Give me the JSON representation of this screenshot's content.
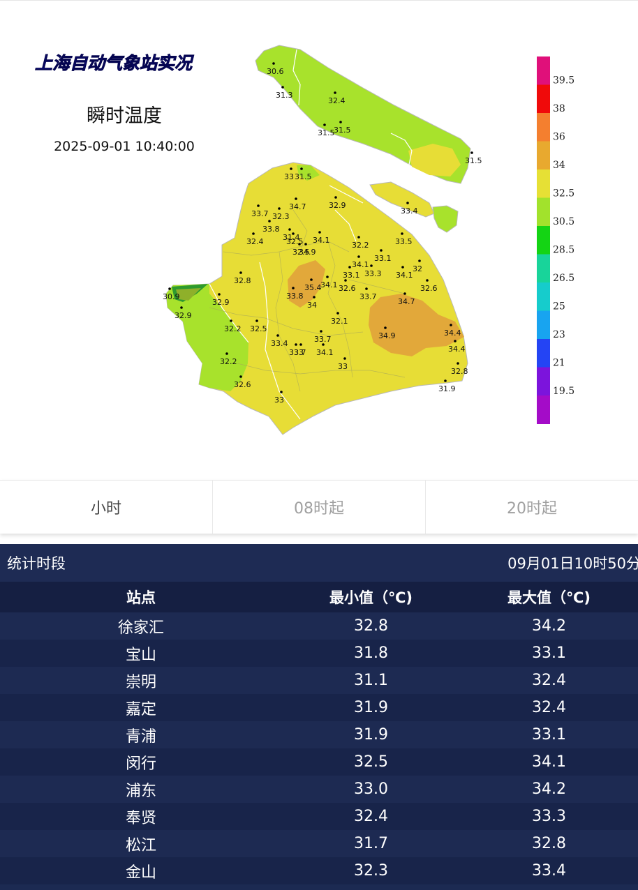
{
  "map": {
    "brand": "上海自动气象站实况",
    "title": "瞬时温度",
    "datetime": "2025-09-01 10:40:00",
    "colors": {
      "light_green": "#a8e22c",
      "yellow": "#e7dd36",
      "orange": "#e2a83a",
      "brand_text": "#1a1ac8"
    },
    "legend": [
      {
        "label": "39.5",
        "color": "#e0107a"
      },
      {
        "label": "38",
        "color": "#f00a0a"
      },
      {
        "label": "36",
        "color": "#f47f2f"
      },
      {
        "label": "34",
        "color": "#e8a92f"
      },
      {
        "label": "32.5",
        "color": "#e6e035"
      },
      {
        "label": "30.5",
        "color": "#a2e22c"
      },
      {
        "label": "28.5",
        "color": "#14d414"
      },
      {
        "label": "26.5",
        "color": "#18d49a"
      },
      {
        "label": "25",
        "color": "#16cccc"
      },
      {
        "label": "23",
        "color": "#18a4f0"
      },
      {
        "label": "21",
        "color": "#2444f4"
      },
      {
        "label": "19.5",
        "color": "#7c14dc"
      },
      {
        "label": "",
        "color": "#a40cc8"
      }
    ],
    "station_values": [
      "30.6",
      "31.3",
      "32.4",
      "31.5",
      "31.5",
      "31.5",
      "33",
      "31.5",
      "33.4",
      "33.7",
      "34.7",
      "32.9",
      "32.3",
      "33.8",
      "32.4",
      "32.5",
      "31.4",
      "34.1",
      "32.2",
      "33.5",
      "32.5",
      "34.9",
      "33.1",
      "34.1",
      "33.1",
      "33.3",
      "34.1",
      "32",
      "32.8",
      "30.9",
      "32.9",
      "32.9",
      "35.4",
      "33.8",
      "34",
      "34.1",
      "32.6",
      "33.7",
      "34.7",
      "32.6",
      "32.1",
      "33.7",
      "34.9",
      "34.4",
      "32.2",
      "32.5",
      "33.4",
      "33.7",
      "33",
      "34.1",
      "34.4",
      "32.2",
      "33",
      "32.8",
      "32.6",
      "31.9",
      "33"
    ]
  },
  "tabs": [
    {
      "label": "小时",
      "active": true
    },
    {
      "label": "08时起",
      "active": false
    },
    {
      "label": "20时起",
      "active": false
    }
  ],
  "stats": {
    "period_label": "统计时段",
    "period_value": "09月01日10时50分",
    "columns": [
      "站点",
      "最小值（℃)",
      "最大值（℃)"
    ],
    "rows": [
      {
        "station": "徐家汇",
        "min": "32.8",
        "max": "34.2"
      },
      {
        "station": "宝山",
        "min": "31.8",
        "max": "33.1"
      },
      {
        "station": "崇明",
        "min": "31.1",
        "max": "32.4"
      },
      {
        "station": "嘉定",
        "min": "31.9",
        "max": "32.4"
      },
      {
        "station": "青浦",
        "min": "31.9",
        "max": "33.1"
      },
      {
        "station": "闵行",
        "min": "32.5",
        "max": "34.1"
      },
      {
        "station": "浦东",
        "min": "33.0",
        "max": "34.2"
      },
      {
        "station": "奉贤",
        "min": "32.4",
        "max": "33.3"
      },
      {
        "station": "松江",
        "min": "31.7",
        "max": "32.8"
      },
      {
        "station": "金山",
        "min": "32.3",
        "max": "33.4"
      }
    ]
  }
}
